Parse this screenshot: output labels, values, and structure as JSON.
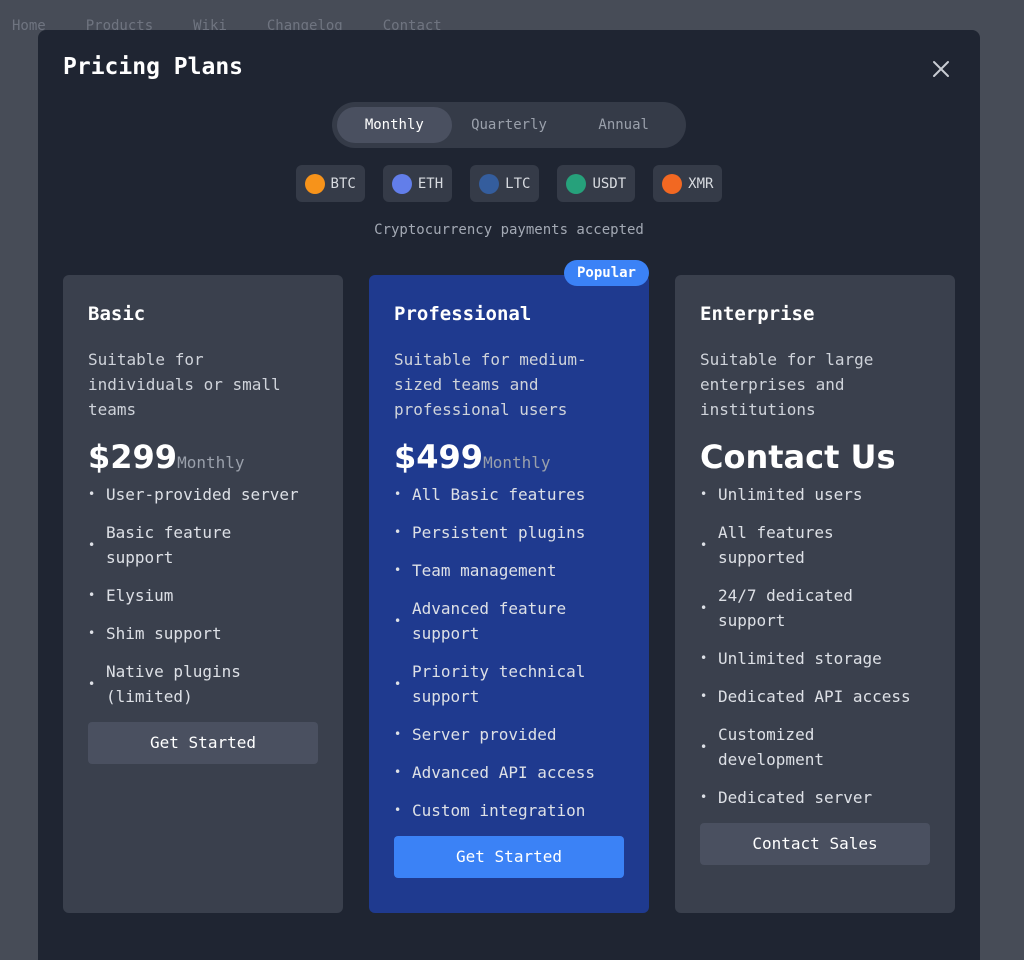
{
  "nav": [
    "Home",
    "Products",
    "Wiki",
    "Changelog",
    "Contact"
  ],
  "modal": {
    "title": "Pricing Plans",
    "billing_periods": [
      "Monthly",
      "Quarterly",
      "Annual"
    ],
    "active_period_index": 0,
    "currencies": [
      {
        "symbol": "BTC",
        "color": "#f7931a"
      },
      {
        "symbol": "ETH",
        "color": "#627eea"
      },
      {
        "symbol": "LTC",
        "color": "#345d9d"
      },
      {
        "symbol": "USDT",
        "color": "#26a17b"
      },
      {
        "symbol": "XMR",
        "color": "#f26822"
      }
    ],
    "crypto_note": "Cryptocurrency payments accepted",
    "plans": [
      {
        "name": "Basic",
        "description": "Suitable for individuals or small teams",
        "price": "$299",
        "period": "Monthly",
        "features": [
          "User-provided server",
          "Basic feature support",
          "Elysium",
          "Shim support",
          "Native plugins (limited)"
        ],
        "button": "Get Started",
        "highlighted": false
      },
      {
        "name": "Professional",
        "badge": "Popular",
        "description": "Suitable for medium-sized teams and professional users",
        "price": "$499",
        "period": "Monthly",
        "features": [
          "All Basic features",
          "Persistent plugins",
          "Team management",
          "Advanced feature support",
          "Priority technical support",
          "Server provided",
          "Advanced API access",
          "Custom integration"
        ],
        "button": "Get Started",
        "highlighted": true
      },
      {
        "name": "Enterprise",
        "description": "Suitable for large enterprises and institutions",
        "price": "Contact Us",
        "features": [
          "Unlimited users",
          "All features supported",
          "24/7 dedicated support",
          "Unlimited storage",
          "Dedicated API access",
          "Customized development",
          "Dedicated server"
        ],
        "button": "Contact Sales",
        "highlighted": false
      }
    ]
  }
}
